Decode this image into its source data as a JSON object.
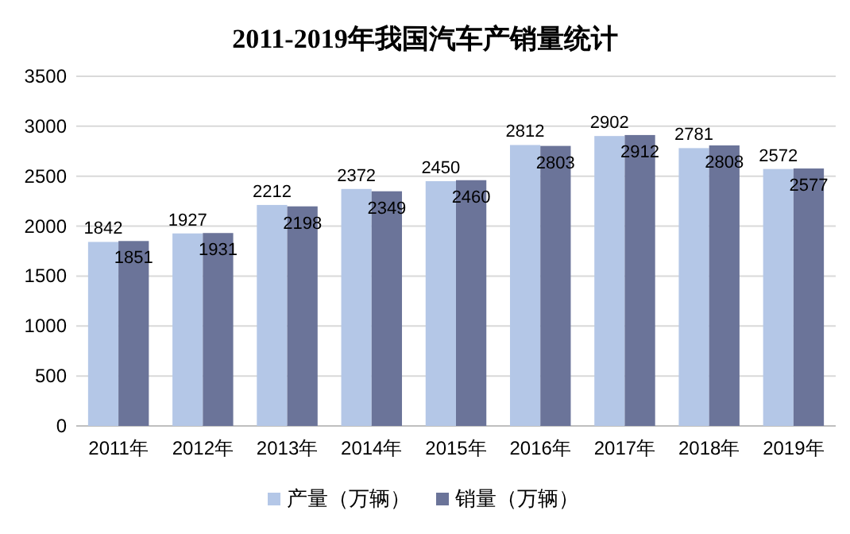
{
  "chart_data": {
    "type": "bar",
    "title": "2011-2019年我国汽车产销量统计",
    "categories": [
      "2011年",
      "2012年",
      "2013年",
      "2014年",
      "2015年",
      "2016年",
      "2017年",
      "2018年",
      "2019年"
    ],
    "series": [
      {
        "name": "产量（万辆）",
        "color": "#b4c7e7",
        "values": [
          1842,
          1927,
          2212,
          2372,
          2450,
          2812,
          2902,
          2781,
          2572
        ]
      },
      {
        "name": "销量（万辆）",
        "color": "#6b7499",
        "values": [
          1851,
          1931,
          2198,
          2349,
          2460,
          2803,
          2912,
          2808,
          2577
        ]
      }
    ],
    "ylim": [
      0,
      3500
    ],
    "yticks": [
      0,
      500,
      1000,
      1500,
      2000,
      2500,
      3000,
      3500
    ],
    "grid": "y",
    "legend": "bottom",
    "data_labels": true
  }
}
